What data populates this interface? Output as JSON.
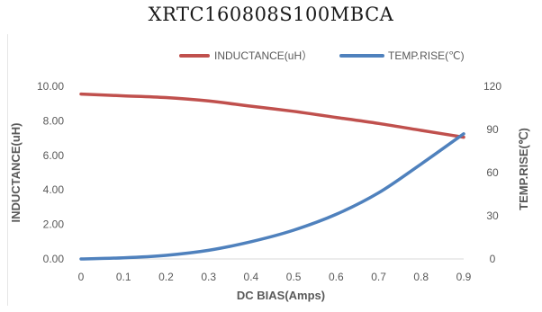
{
  "chart_data": {
    "type": "line",
    "title": "XRTC160808S100MBCA",
    "xlabel": "DC BIAS(Amps)",
    "ylabel_left": "INDUCTANCE(uH)",
    "ylabel_right": "TEMP.RISE(℃)",
    "x_ticks": [
      "0",
      "0.1",
      "0.2",
      "0.3",
      "0.4",
      "0.5",
      "0.6",
      "0.7",
      "0.8",
      "0.9"
    ],
    "y_left_ticks": [
      "0.00",
      "2.00",
      "4.00",
      "6.00",
      "8.00",
      "10.00"
    ],
    "y_right_ticks": [
      "0",
      "30",
      "60",
      "90",
      "120"
    ],
    "xlim": [
      0,
      0.9
    ],
    "ylim_left": [
      0,
      10
    ],
    "ylim_right": [
      0,
      120
    ],
    "grid": false,
    "legend_position": "top-center",
    "series": [
      {
        "name": "INDUCTANCE(uH）",
        "axis": "left",
        "color": "#c0504d",
        "x": [
          0,
          0.1,
          0.2,
          0.3,
          0.4,
          0.5,
          0.6,
          0.7,
          0.8,
          0.9
        ],
        "values": [
          9.55,
          9.45,
          9.35,
          9.15,
          8.85,
          8.55,
          8.2,
          7.85,
          7.45,
          7.05
        ]
      },
      {
        "name": "TEMP.RISE(℃)",
        "axis": "right",
        "color": "#4f81bd",
        "x": [
          0,
          0.1,
          0.2,
          0.3,
          0.4,
          0.5,
          0.6,
          0.7,
          0.8,
          0.9
        ],
        "values": [
          0,
          0.8,
          2.5,
          6,
          12,
          20,
          31,
          46,
          66,
          87
        ]
      }
    ]
  }
}
